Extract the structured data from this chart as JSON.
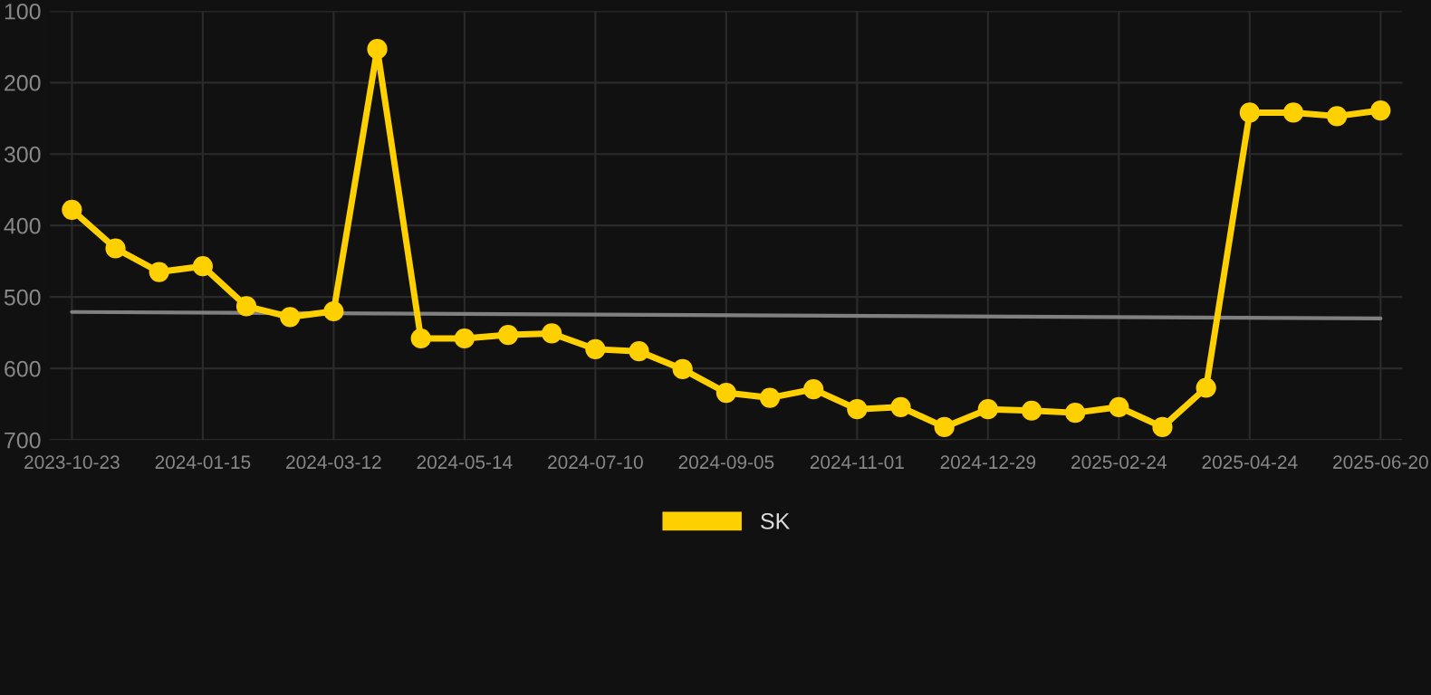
{
  "chart_data": {
    "type": "line",
    "categories": [
      "2023-10-23",
      null,
      null,
      "2024-01-15",
      null,
      null,
      "2024-03-12",
      null,
      null,
      "2024-05-14",
      null,
      null,
      "2024-07-10",
      null,
      null,
      "2024-09-05",
      null,
      null,
      "2024-11-01",
      null,
      null,
      "2024-12-29",
      null,
      null,
      "2025-02-24",
      null,
      null,
      "2025-04-24",
      null,
      null,
      "2025-06-20"
    ],
    "series": [
      {
        "name": "SK",
        "color": "#ffd000",
        "marker": "circle",
        "values": [
          378,
          432,
          465,
          457,
          513,
          528,
          520,
          153,
          558,
          558,
          553,
          551,
          573,
          576,
          601,
          634,
          641,
          629,
          657,
          654,
          682,
          657,
          659,
          662,
          654,
          682,
          627,
          242,
          242,
          247,
          239
        ]
      },
      {
        "type": "line",
        "color": "#808080",
        "marker": "none",
        "values": [
          521,
          null,
          null,
          null,
          null,
          null,
          null,
          null,
          null,
          null,
          null,
          null,
          null,
          null,
          null,
          null,
          null,
          null,
          null,
          null,
          null,
          null,
          null,
          null,
          null,
          null,
          null,
          null,
          null,
          null,
          530
        ]
      }
    ],
    "ylim": [
      700,
      100
    ],
    "yticks": [
      100,
      200,
      300,
      400,
      500,
      600,
      700
    ],
    "grid": true,
    "legend": "bottom",
    "line_style": "solid"
  }
}
